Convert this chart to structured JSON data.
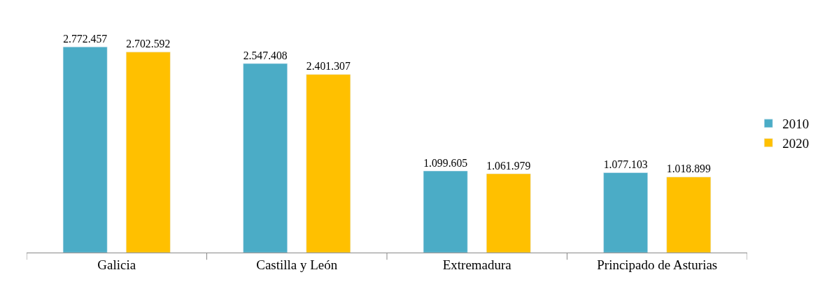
{
  "chart_data": {
    "type": "bar",
    "categories": [
      "Galicia",
      "Castilla y León",
      "Extremadura",
      "Principado de Asturias"
    ],
    "series": [
      {
        "name": "2010",
        "color": "#4bacc6",
        "values": [
          2772457,
          2547408,
          1099605,
          1077103
        ],
        "value_labels": [
          "2.772.457",
          "2.547.408",
          "1.099.605",
          "1.077.103"
        ]
      },
      {
        "name": "2020",
        "color": "#ffc000",
        "values": [
          2702592,
          2401307,
          1061979,
          1018899
        ],
        "value_labels": [
          "2.702.592",
          "2.401.307",
          "1.061.979",
          "1.018.899"
        ]
      }
    ],
    "legend": "right",
    "tick_labels": "x"
  }
}
